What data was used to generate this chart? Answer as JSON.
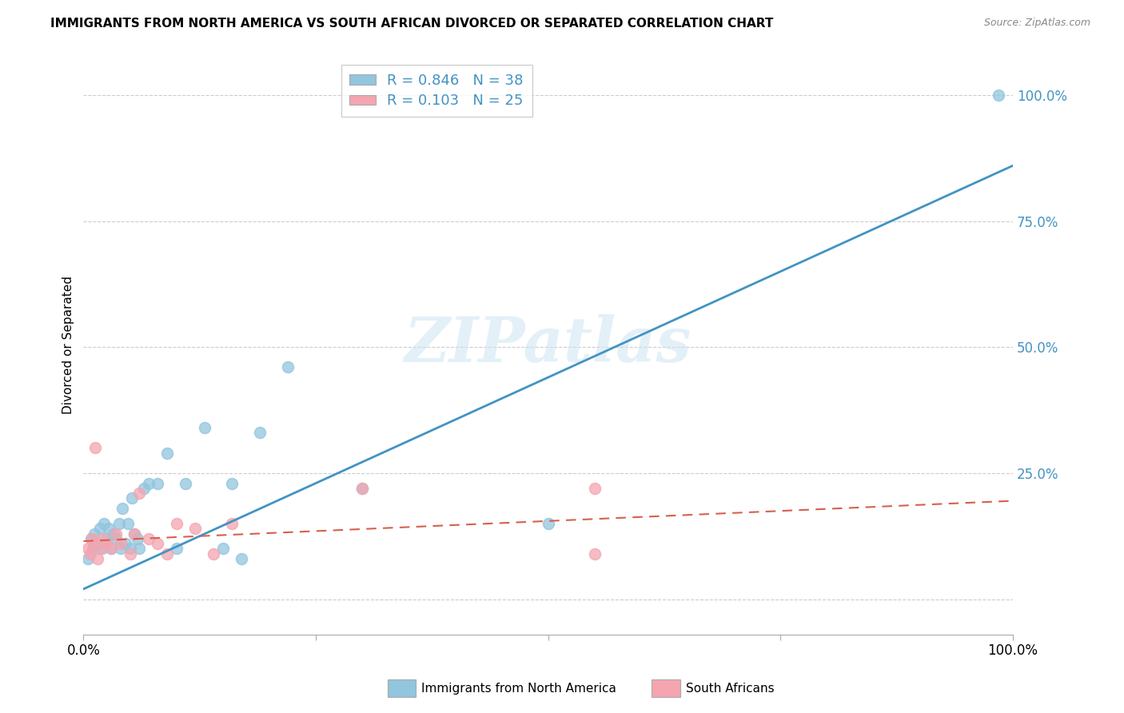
{
  "title": "IMMIGRANTS FROM NORTH AMERICA VS SOUTH AFRICAN DIVORCED OR SEPARATED CORRELATION CHART",
  "source": "Source: ZipAtlas.com",
  "ylabel": "Divorced or Separated",
  "watermark": "ZIPatlas",
  "blue_R": 0.846,
  "blue_N": 38,
  "pink_R": 0.103,
  "pink_N": 25,
  "blue_color": "#92c5de",
  "pink_color": "#f4a5b0",
  "blue_line_color": "#4393c3",
  "pink_line_color": "#d6604d",
  "legend_label_blue": "Immigrants from North America",
  "legend_label_pink": "South Africans",
  "xlim": [
    0.0,
    1.0
  ],
  "ylim": [
    -0.07,
    1.08
  ],
  "yticks": [
    0.0,
    0.25,
    0.5,
    0.75,
    1.0
  ],
  "ytick_labels": [
    "",
    "25.0%",
    "50.0%",
    "75.0%",
    "100.0%"
  ],
  "xticks": [
    0.0,
    0.25,
    0.5,
    0.75,
    1.0
  ],
  "xtick_labels": [
    "0.0%",
    "",
    "",
    "",
    "100.0%"
  ],
  "blue_scatter_x": [
    0.005,
    0.008,
    0.01,
    0.012,
    0.015,
    0.018,
    0.02,
    0.022,
    0.025,
    0.027,
    0.03,
    0.032,
    0.035,
    0.038,
    0.04,
    0.042,
    0.045,
    0.048,
    0.05,
    0.052,
    0.055,
    0.058,
    0.06,
    0.065,
    0.07,
    0.08,
    0.09,
    0.1,
    0.11,
    0.13,
    0.15,
    0.16,
    0.17,
    0.19,
    0.22,
    0.3,
    0.5,
    0.985
  ],
  "blue_scatter_y": [
    0.08,
    0.12,
    0.1,
    0.13,
    0.11,
    0.14,
    0.1,
    0.15,
    0.12,
    0.14,
    0.1,
    0.13,
    0.12,
    0.15,
    0.1,
    0.18,
    0.11,
    0.15,
    0.1,
    0.2,
    0.13,
    0.12,
    0.1,
    0.22,
    0.23,
    0.23,
    0.29,
    0.1,
    0.23,
    0.34,
    0.1,
    0.23,
    0.08,
    0.33,
    0.46,
    0.22,
    0.15,
    1.0
  ],
  "pink_scatter_x": [
    0.005,
    0.007,
    0.009,
    0.011,
    0.013,
    0.015,
    0.018,
    0.02,
    0.025,
    0.03,
    0.035,
    0.04,
    0.05,
    0.055,
    0.06,
    0.07,
    0.08,
    0.09,
    0.1,
    0.12,
    0.14,
    0.16,
    0.3,
    0.55,
    0.55
  ],
  "pink_scatter_y": [
    0.1,
    0.09,
    0.12,
    0.11,
    0.3,
    0.08,
    0.1,
    0.12,
    0.11,
    0.1,
    0.13,
    0.11,
    0.09,
    0.13,
    0.21,
    0.12,
    0.11,
    0.09,
    0.15,
    0.14,
    0.09,
    0.15,
    0.22,
    0.09,
    0.22
  ],
  "blue_line_x0": 0.0,
  "blue_line_x1": 1.0,
  "blue_line_y0": 0.02,
  "blue_line_y1": 0.86,
  "pink_line_x0": 0.0,
  "pink_line_x1": 1.0,
  "pink_line_y0": 0.115,
  "pink_line_y1": 0.195,
  "background_color": "#ffffff",
  "grid_color": "#cccccc",
  "grid_linestyle": "--",
  "scatter_size": 100,
  "scatter_alpha": 0.75,
  "scatter_linewidth": 1.2
}
